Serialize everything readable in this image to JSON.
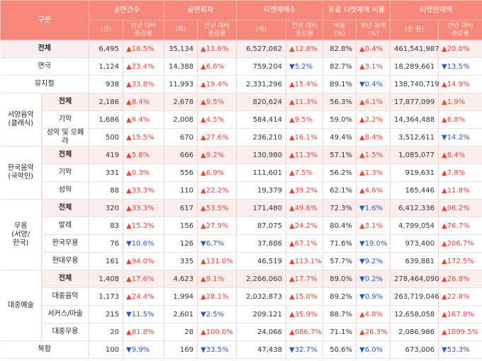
{
  "table": {
    "corner": "구분",
    "groups": [
      "공연건수",
      "공연회차",
      "티켓예매수",
      "유료 티켓예매 비율",
      "티켓판매액"
    ],
    "subheaders": [
      "(건)",
      "전년 대비\n증감률",
      "(회)",
      "전년 대비\n증감률",
      "(매)",
      "전년 대비\n증감률",
      "비율\n(%)",
      "작년-올해\n(%)",
      "(천 원)",
      "전년 대비\n증감률"
    ],
    "sections": [
      {
        "label": "전체",
        "cells": [
          "6,495",
          "▲16.5%",
          "35,134",
          "▲11.6%",
          "6,527,082",
          "▲12.8%",
          "82.8%",
          "▲0.4%",
          "461,541,987",
          "▲20.0%"
        ]
      },
      {
        "label": "연극",
        "cells": [
          "1,124",
          "▲23.4%",
          "14,388",
          "▲6.6%",
          "759,204",
          "▼5.2%",
          "82.7%",
          "▲3.1%",
          "18,289,661",
          "▼13.5%"
        ]
      },
      {
        "label": "뮤지컬",
        "cells": [
          "938",
          "▲33.8%",
          "11,993",
          "▲19.4%",
          "2,331,296",
          "▲15.4%",
          "89.1%",
          "▼0.4%",
          "138,740,719",
          "▲14.9%"
        ]
      },
      {
        "label": "서양음악\n(클래식)",
        "rows": [
          {
            "label": "전체",
            "cells": [
              "2,186",
              "▲8.4%",
              "2,678",
              "▲9.5%",
              "820,624",
              "▲11.3%",
              "56.3%",
              "▲4.1%",
              "17,877,099",
              "▲1.9%"
            ]
          },
          {
            "label": "기악",
            "cells": [
              "1,686",
              "▲6.4%",
              "2,008",
              "▲4.5%",
              "584,414",
              "▲9.5%",
              "59.0%",
              "▲2.2%",
              "14,364,488",
              "▲6.8%"
            ]
          },
          {
            "label": "성악 및 오페라",
            "cells": [
              "500",
              "▲15.5%",
              "670",
              "▲27.6%",
              "236,210",
              "▲16.1%",
              "49.4%",
              "▲8.4%",
              "3,512,611",
              "▼14.2%"
            ]
          }
        ]
      },
      {
        "label": "한국음악\n(국악인)",
        "rows": [
          {
            "label": "전체",
            "cells": [
              "419",
              "▲5.8%",
              "666",
              "▲9.2%",
              "130,980",
              "▲11.3%",
              "57.1%",
              "▲1.5%",
              "1,085,077",
              "▲8.4%"
            ]
          },
          {
            "label": "기악",
            "cells": [
              "331",
              "▲0.3%",
              "556",
              "▲6.9%",
              "111,601",
              "▲7.5%",
              "56.2%",
              "▲1.3%",
              "919,631",
              "▲7.8%"
            ]
          },
          {
            "label": "성악",
            "cells": [
              "88",
              "▲33.3%",
              "110",
              "▲22.2%",
              "19,379",
              "▲39.2%",
              "62.1%",
              "▲4.6%",
              "165,446",
              "▲11.8%"
            ]
          }
        ]
      },
      {
        "label": "무용\n(서양/\n한국)",
        "rows": [
          {
            "label": "전체",
            "cells": [
              "320",
              "▲33.3%",
              "617",
              "▲53.5%",
              "171,480",
              "▲49.6%",
              "72.3%",
              "▼1.6%",
              "6,412,336",
              "▲96.2%"
            ]
          },
          {
            "label": "발레",
            "cells": [
              "83",
              "▲15.3%",
              "156",
              "▲27.9%",
              "87,075",
              "▲24.2%",
              "80.4%",
              "▲3.1%",
              "4,799,054",
              "▲76.7%"
            ]
          },
          {
            "label": "한국무용",
            "cells": [
              "76",
              "▼10.6%",
              "126",
              "▼6.7%",
              "37,886",
              "▲67.1%",
              "71.6%",
              "▼19.0%",
              "973,400",
              "▲206.7%"
            ]
          },
          {
            "label": "현대무용",
            "cells": [
              "161",
              "▲94.0%",
              "335",
              "▲131.0%",
              "46,519",
              "▲113.1%",
              "57.7%",
              "▼9.2%",
              "639,881",
              "▲172.5%"
            ]
          }
        ]
      },
      {
        "label": "대중예술",
        "rows": [
          {
            "label": "전체",
            "cells": [
              "1,408",
              "▲17.6%",
              "4,623",
              "▲9.1%",
              "2,266,060",
              "▲17.7%",
              "89.0%",
              "▼0.2%",
              "278,464,090",
              "▲26.8%"
            ]
          },
          {
            "label": "대중음악",
            "cells": [
              "1,173",
              "▲24.4%",
              "1,994",
              "▲28.1%",
              "2,032,873",
              "▲15.0%",
              "89.2%",
              "▼0.9%",
              "263,719,046",
              "▲22.8%"
            ]
          },
          {
            "label": "서커스/마술",
            "cells": [
              "215",
              "▼11.5%",
              "2,601",
              "▼2.5%",
              "209,121",
              "▲35.9%",
              "88.7%",
              "▲4.8%",
              "12,658,058",
              "▲167.8%"
            ]
          },
          {
            "label": "대중무용",
            "cells": [
              "20",
              "▲81.8%",
              "28",
              "▲100.0%",
              "24,066",
              "▲686.7%",
              "71.1%",
              "▲26.3%",
              "2,086,986",
              "▲1899.5%"
            ]
          }
        ]
      },
      {
        "label": "복합",
        "cells": [
          "100",
          "▼9.9%",
          "169",
          "▼33.5%",
          "47,438",
          "▼32.7%",
          "50.6%",
          "▼6.0%",
          "673,006",
          "▼53.3%"
        ]
      }
    ]
  }
}
